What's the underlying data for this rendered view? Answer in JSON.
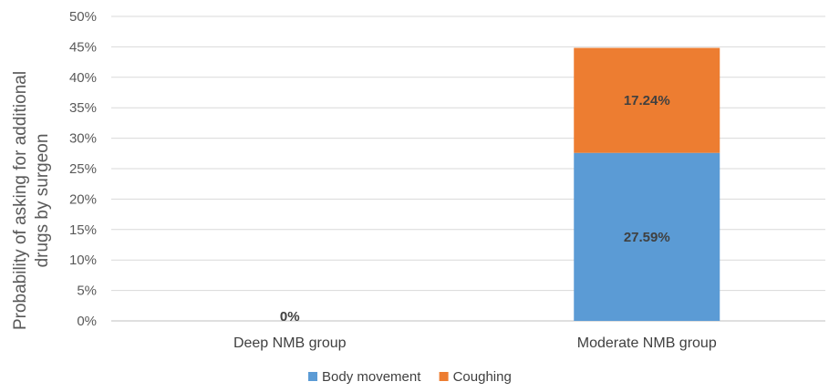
{
  "chart_data": {
    "type": "bar",
    "stacked": true,
    "categories": [
      "Deep NMB group",
      "Moderate NMB group"
    ],
    "series": [
      {
        "name": "Body movement",
        "values": [
          0,
          27.59
        ],
        "color": "#5b9bd5"
      },
      {
        "name": "Coughing",
        "values": [
          0,
          17.24
        ],
        "color": "#ed7d31"
      }
    ],
    "data_labels": [
      {
        "category": 0,
        "series": null,
        "text": "0%"
      },
      {
        "category": 1,
        "series": 0,
        "text": "27.59%"
      },
      {
        "category": 1,
        "series": 1,
        "text": "17.24%"
      }
    ],
    "ylabel_lines": [
      "Probability of asking for additional",
      "drugs by surgeon"
    ],
    "xlabel": "",
    "ylim": [
      0,
      50
    ],
    "yticks": [
      "0%",
      "5%",
      "10%",
      "15%",
      "20%",
      "25%",
      "30%",
      "35%",
      "40%",
      "45%",
      "50%"
    ],
    "grid": true,
    "legend_position": "bottom"
  }
}
